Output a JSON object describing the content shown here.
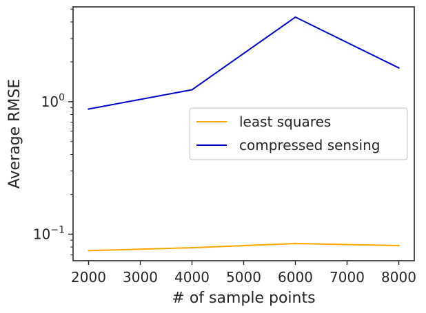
{
  "chart_data": {
    "type": "line",
    "xlabel": "# of sample points",
    "ylabel": "Average RMSE",
    "yscale": "log",
    "xlim": [
      1700,
      8300
    ],
    "ylim": [
      0.063,
      5.2
    ],
    "x_ticks": [
      2000,
      3000,
      4000,
      5000,
      6000,
      7000,
      8000
    ],
    "x_tick_labels": [
      "2000",
      "3000",
      "4000",
      "5000",
      "6000",
      "7000",
      "8000"
    ],
    "y_major_ticks": [
      {
        "value": 0.1,
        "base": "10",
        "exp": "−1"
      },
      {
        "value": 1,
        "base": "10",
        "exp": "0"
      }
    ],
    "grid": false,
    "legend_position": "center-right",
    "series": [
      {
        "name": "least squares",
        "color": "#ffa500",
        "x": [
          2000,
          4000,
          6000,
          8000
        ],
        "y": [
          0.075,
          0.079,
          0.085,
          0.082
        ]
      },
      {
        "name": "compressed sensing",
        "color": "#0000cd",
        "x": [
          2000,
          4000,
          6000,
          8000
        ],
        "y": [
          0.88,
          1.23,
          4.35,
          1.8
        ]
      }
    ]
  }
}
